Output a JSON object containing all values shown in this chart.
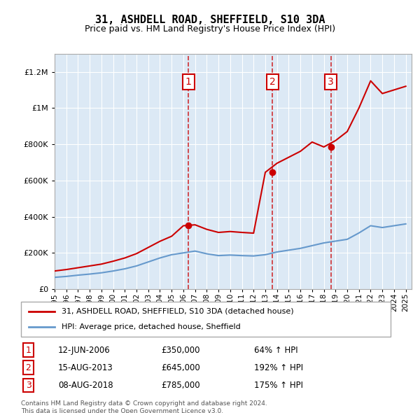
{
  "title": "31, ASHDELL ROAD, SHEFFIELD, S10 3DA",
  "subtitle": "Price paid vs. HM Land Registry's House Price Index (HPI)",
  "ylabel_ticks": [
    0,
    200000,
    400000,
    600000,
    800000,
    1000000,
    1200000
  ],
  "ylabel_labels": [
    "£0",
    "£200K",
    "£400K",
    "£600K",
    "£800K",
    "£1M",
    "£1.2M"
  ],
  "ylim": [
    0,
    1300000
  ],
  "xlim_start": 1995.0,
  "xlim_end": 2025.5,
  "background_color": "#dce9f5",
  "plot_bg_color": "#dce9f5",
  "sale_dates": [
    2006.44,
    2013.62,
    2018.6
  ],
  "sale_labels": [
    "1",
    "2",
    "3"
  ],
  "sale_prices": [
    350000,
    645000,
    785000
  ],
  "sale_info": [
    {
      "label": "1",
      "date": "12-JUN-2006",
      "price": "£350,000",
      "hpi": "64% ↑ HPI"
    },
    {
      "label": "2",
      "date": "15-AUG-2013",
      "price": "£645,000",
      "hpi": "192% ↑ HPI"
    },
    {
      "label": "3",
      "date": "08-AUG-2018",
      "price": "£785,000",
      "hpi": "175% ↑ HPI"
    }
  ],
  "legend_line1": "31, ASHDELL ROAD, SHEFFIELD, S10 3DA (detached house)",
  "legend_line2": "HPI: Average price, detached house, Sheffield",
  "footer1": "Contains HM Land Registry data © Crown copyright and database right 2024.",
  "footer2": "This data is licensed under the Open Government Licence v3.0.",
  "red_color": "#cc0000",
  "blue_color": "#6699cc",
  "hpi_years": [
    1995,
    1996,
    1997,
    1998,
    1999,
    2000,
    2001,
    2002,
    2003,
    2004,
    2005,
    2006,
    2007,
    2008,
    2009,
    2010,
    2011,
    2012,
    2013,
    2014,
    2015,
    2016,
    2017,
    2018,
    2019,
    2020,
    2021,
    2022,
    2023,
    2024,
    2025
  ],
  "hpi_values": [
    65000,
    70000,
    77000,
    83000,
    90000,
    100000,
    112000,
    128000,
    150000,
    172000,
    190000,
    200000,
    210000,
    195000,
    185000,
    188000,
    185000,
    183000,
    190000,
    205000,
    215000,
    225000,
    240000,
    255000,
    265000,
    275000,
    310000,
    350000,
    340000,
    350000,
    360000
  ],
  "red_years": [
    1995,
    1996,
    1997,
    1998,
    1999,
    2000,
    2001,
    2002,
    2003,
    2004,
    2005,
    2006,
    2007,
    2008,
    2009,
    2010,
    2011,
    2012,
    2013,
    2014,
    2015,
    2016,
    2017,
    2018,
    2019,
    2020,
    2021,
    2022,
    2023,
    2024,
    2025
  ],
  "red_values": [
    100000,
    108000,
    118000,
    128000,
    138000,
    154000,
    172000,
    196000,
    230000,
    264000,
    292000,
    350000,
    355000,
    330000,
    313000,
    318000,
    313000,
    309000,
    645000,
    695000,
    728000,
    761000,
    812000,
    785000,
    820000,
    870000,
    1000000,
    1150000,
    1080000,
    1100000,
    1120000
  ],
  "xticks": [
    1995,
    1996,
    1997,
    1998,
    1999,
    2000,
    2001,
    2002,
    2003,
    2004,
    2005,
    2006,
    2007,
    2008,
    2009,
    2010,
    2011,
    2012,
    2013,
    2014,
    2015,
    2016,
    2017,
    2018,
    2019,
    2020,
    2021,
    2022,
    2023,
    2024,
    2025
  ]
}
